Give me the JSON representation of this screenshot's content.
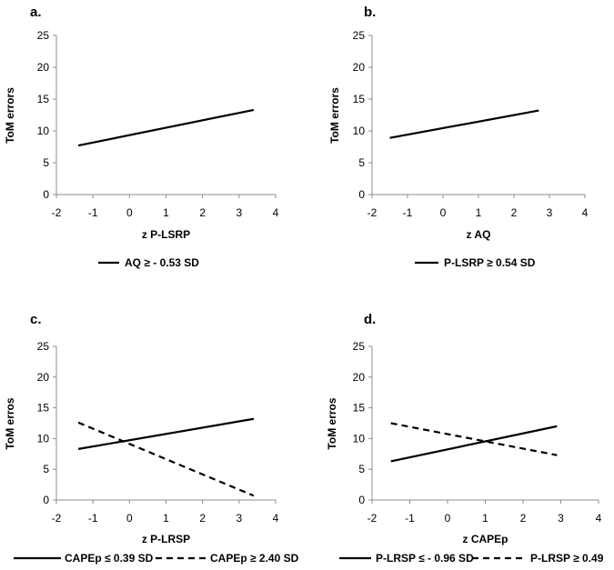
{
  "chart_data": [
    {
      "panel": "a.",
      "type": "line",
      "xlabel": "z P-LSRP",
      "ylabel": "ToM errors",
      "xlim": [
        -2,
        4
      ],
      "ylim": [
        0,
        25
      ],
      "xticks": [
        "-2",
        "-1",
        "0",
        "1",
        "2",
        "3",
        "4"
      ],
      "yticks": [
        "0",
        "5",
        "10",
        "15",
        "20",
        "25"
      ],
      "series": [
        {
          "name": "AQ ≥ - 0.53 SD",
          "style": "solid",
          "x": [
            -1.4,
            3.4
          ],
          "y": [
            7.7,
            13.3
          ]
        }
      ]
    },
    {
      "panel": "b.",
      "type": "line",
      "xlabel": "z AQ",
      "ylabel": "ToM errors",
      "xlim": [
        -2,
        4
      ],
      "ylim": [
        0,
        25
      ],
      "xticks": [
        "-2",
        "-1",
        "0",
        "1",
        "2",
        "3",
        "4"
      ],
      "yticks": [
        "0",
        "5",
        "10",
        "15",
        "20",
        "25"
      ],
      "series": [
        {
          "name": "P-LSRP ≥ 0.54 SD",
          "style": "solid",
          "x": [
            -1.5,
            2.7
          ],
          "y": [
            8.9,
            13.2
          ]
        }
      ]
    },
    {
      "panel": "c.",
      "type": "line",
      "xlabel": "z P-LRSP",
      "ylabel": "ToM erros",
      "xlim": [
        -2,
        4
      ],
      "ylim": [
        0,
        25
      ],
      "xticks": [
        "-2",
        "-1",
        "0",
        "1",
        "2",
        "3",
        "4"
      ],
      "yticks": [
        "0",
        "5",
        "10",
        "15",
        "20",
        "25"
      ],
      "series": [
        {
          "name": "CAPEp ≤ 0.39 SD",
          "style": "solid",
          "x": [
            -1.4,
            3.4
          ],
          "y": [
            8.3,
            13.2
          ]
        },
        {
          "name": "CAPEp ≥ 2.40 SD",
          "style": "dashed",
          "x": [
            -1.4,
            3.4
          ],
          "y": [
            12.6,
            0.7
          ]
        }
      ]
    },
    {
      "panel": "d.",
      "type": "line",
      "xlabel": "z CAPEp",
      "ylabel": "ToM erros",
      "xlim": [
        -2,
        4
      ],
      "ylim": [
        0,
        25
      ],
      "xticks": [
        "-2",
        "-1",
        "0",
        "1",
        "2",
        "3",
        "4"
      ],
      "yticks": [
        "0",
        "5",
        "10",
        "15",
        "20",
        "25"
      ],
      "series": [
        {
          "name": "P-LRSP ≤ - 0.96 SD",
          "style": "solid",
          "x": [
            -1.5,
            2.9
          ],
          "y": [
            6.3,
            12.0
          ]
        },
        {
          "name": "P-LRSP ≥ 0.49",
          "style": "dashed",
          "x": [
            -1.5,
            2.9
          ],
          "y": [
            12.5,
            7.3
          ]
        }
      ]
    }
  ]
}
